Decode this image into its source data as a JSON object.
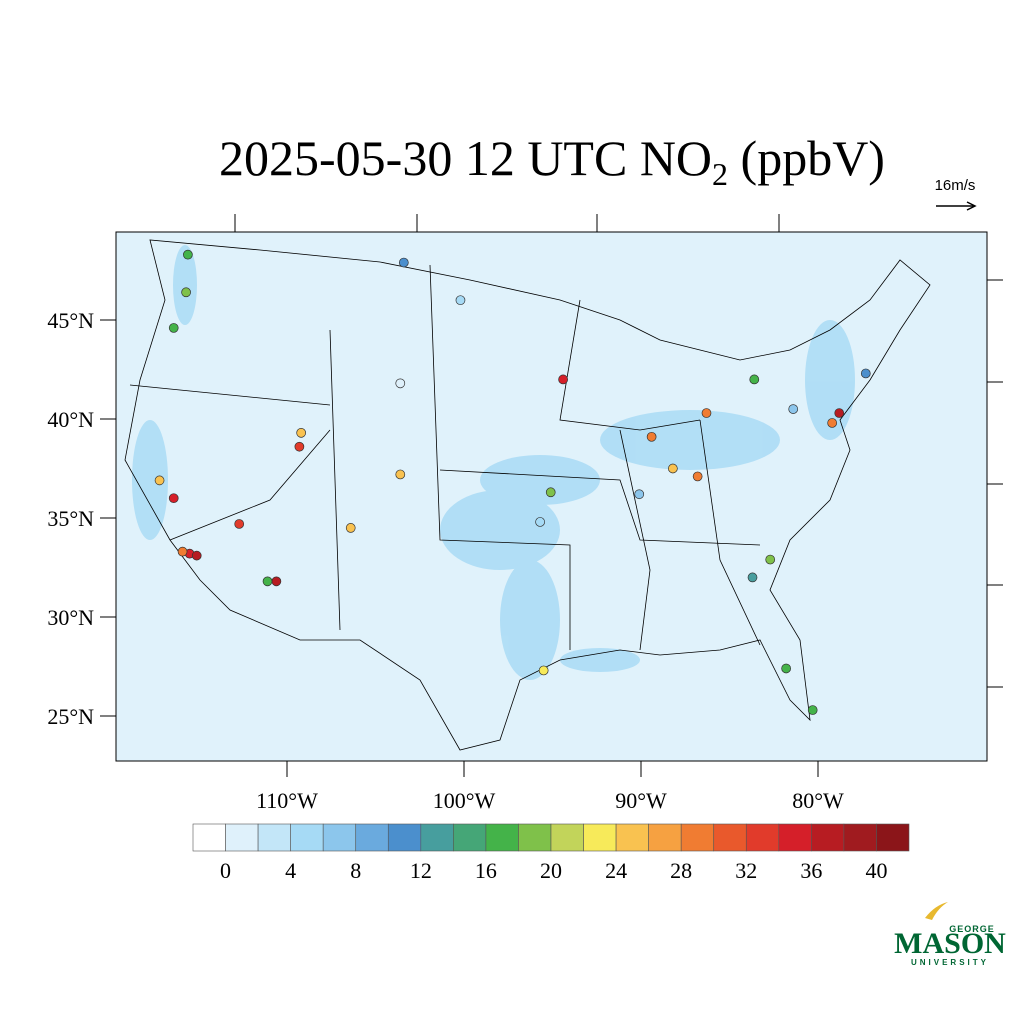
{
  "title": [
    "2025-05-30 12 UTC NO",
    "2",
    " (ppbV)"
  ],
  "vector_label": "16m/s",
  "lat_ticks": [
    {
      "value": 45,
      "label": "45°N"
    },
    {
      "value": 40,
      "label": "40°N"
    },
    {
      "value": 35,
      "label": "35°N"
    },
    {
      "value": 30,
      "label": "30°N"
    },
    {
      "value": 25,
      "label": "25°N"
    }
  ],
  "lon_ticks": [
    {
      "value": -110,
      "label": "110°W"
    },
    {
      "value": -100,
      "label": "100°W"
    },
    {
      "value": -90,
      "label": "90°W"
    },
    {
      "value": -80,
      "label": "80°W"
    }
  ],
  "colorbar": {
    "clim": [
      -2,
      42
    ],
    "ticks": [
      0,
      4,
      8,
      12,
      16,
      20,
      24,
      28,
      32,
      36,
      40
    ],
    "colors": [
      "#ffffff",
      "#dff1fb",
      "#c3e6f8",
      "#a6daf5",
      "#8cc6ec",
      "#6aaade",
      "#4b8fcd",
      "#479e9e",
      "#45a677",
      "#44b349",
      "#7fc14a",
      "#c2d45a",
      "#f7ea5a",
      "#f9c250",
      "#f6a141",
      "#f07c32",
      "#e9592c",
      "#e13b2b",
      "#d51f29",
      "#b71c22",
      "#a01b1f",
      "#8b1519"
    ]
  },
  "stations": {
    "lon": [
      -115.5,
      -115.1,
      -115.9,
      -116.4,
      -112.7,
      -110.6,
      -111.1,
      -109.3,
      -109.2,
      -117.2,
      -115.6,
      -115.7,
      -116.4,
      -103.6,
      -106.4,
      -95.1,
      -95.5,
      -94.4,
      -89.4,
      -88.2,
      -86.8,
      -86.3,
      -78.8,
      -79.2,
      -82.7,
      -81.8,
      -80.3,
      -83.6,
      -103.4,
      -100.2,
      -103.6,
      -95.7,
      -81.4,
      -77.3,
      -83.7,
      -90.1
    ],
    "lat": [
      33.2,
      33.1,
      33.3,
      36.0,
      34.7,
      31.8,
      31.8,
      38.6,
      39.3,
      36.9,
      48.3,
      46.4,
      44.6,
      37.2,
      34.5,
      36.3,
      27.3,
      42.0,
      39.1,
      37.5,
      37.1,
      40.3,
      40.3,
      39.8,
      32.9,
      27.4,
      25.3,
      42.0,
      47.9,
      46.0,
      41.8,
      34.8,
      40.5,
      42.3,
      32.0,
      36.2
    ],
    "no2": [
      34,
      36,
      28,
      34,
      32,
      36,
      16,
      32,
      24,
      24,
      16,
      18,
      16,
      24,
      24,
      18,
      22,
      34,
      28,
      24,
      28,
      28,
      36,
      28,
      18,
      16,
      16,
      16,
      10,
      4,
      0,
      4,
      6,
      10,
      12,
      6
    ]
  },
  "logo": {
    "top": "GEORGE",
    "main": "MASON",
    "bottom": "UNIVERSITY"
  }
}
